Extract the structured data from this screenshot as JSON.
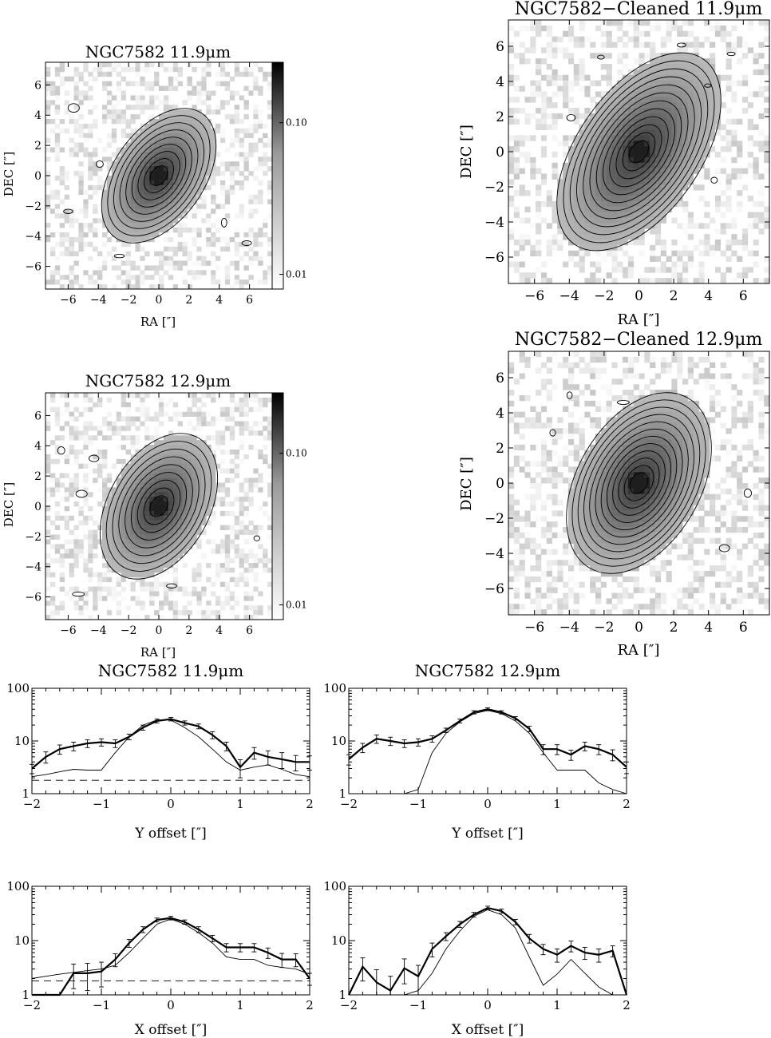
{
  "figure": {
    "images": [
      {
        "title": "NGC7582 11.9μm",
        "xlabel": "RA [″]",
        "ylabel": "DEC [″]",
        "ticks": [
          "−6",
          "−4",
          "−2",
          "0",
          "2",
          "4",
          "6"
        ],
        "range": [
          -7.5,
          7.5
        ],
        "colorbar": true,
        "colorbar_ticks": [
          "0.10",
          "0.01"
        ],
        "colorbar_values": [
          0.1,
          0.01
        ],
        "angle_deg": 35,
        "sigma": [
          1.35,
          2.3
        ],
        "contours": 9
      },
      {
        "title": "NGC7582−Cleaned 11.9μm",
        "xlabel": "RA [″]",
        "ylabel": "DEC [″]",
        "ticks": [
          "−6",
          "−4",
          "−2",
          "0",
          "2",
          "4",
          "6"
        ],
        "range": [
          -7.5,
          7.5
        ],
        "colorbar": false,
        "angle_deg": 35,
        "sigma": [
          1.6,
          3.0
        ],
        "contours": 12
      },
      {
        "title": "NGC7582 12.9μm",
        "xlabel": "RA [″]",
        "ylabel": "DEC [″]",
        "ticks": [
          "−6",
          "−4",
          "−2",
          "0",
          "2",
          "4",
          "6"
        ],
        "range": [
          -7.5,
          7.5
        ],
        "colorbar": true,
        "colorbar_ticks": [
          "0.10",
          "0.01"
        ],
        "colorbar_values": [
          0.1,
          0.01
        ],
        "angle_deg": 30,
        "sigma": [
          1.5,
          2.4
        ],
        "contours": 9
      },
      {
        "title": "NGC7582−Cleaned 12.9μm",
        "xlabel": "RA [″]",
        "ylabel": "DEC [″]",
        "ticks": [
          "−6",
          "−4",
          "−2",
          "0",
          "2",
          "4",
          "6"
        ],
        "range": [
          -7.5,
          7.5
        ],
        "colorbar": false,
        "angle_deg": 30,
        "sigma": [
          1.6,
          2.6
        ],
        "contours": 12
      }
    ]
  },
  "chart_data": [
    {
      "type": "line",
      "title": "NGC7582 11.9μm",
      "xlabel": "Y offset [″]",
      "ylabel": "",
      "xlim": [
        -2,
        2
      ],
      "ylim": [
        1,
        100
      ],
      "yscale": "log",
      "xticks": [
        "−2",
        "−1",
        "0",
        "1",
        "2"
      ],
      "yticks": [
        "1",
        "10",
        "100"
      ],
      "x": [
        -2.0,
        -1.8,
        -1.6,
        -1.4,
        -1.2,
        -1.0,
        -0.8,
        -0.6,
        -0.4,
        -0.2,
        0.0,
        0.2,
        0.4,
        0.6,
        0.8,
        1.0,
        1.2,
        1.4,
        1.6,
        1.8,
        2.0
      ],
      "series": [
        {
          "style": "thick",
          "y": [
            3.0,
            5.0,
            7.0,
            8.0,
            9.0,
            9.5,
            9.0,
            12,
            18,
            24,
            26,
            22,
            19,
            13,
            8,
            3.2,
            6,
            5,
            4.5,
            4,
            4
          ],
          "err": [
            0.6,
            1.2,
            1.4,
            1.5,
            1.5,
            1.5,
            1.5,
            1.5,
            2,
            2,
            2,
            2,
            2,
            2,
            1.5,
            1.2,
            1.5,
            1.5,
            1.5,
            1.3,
            1.2
          ]
        },
        {
          "style": "thin",
          "y": [
            2.1,
            2.3,
            2.6,
            2.9,
            2.8,
            2.8,
            6,
            12,
            20,
            25,
            25,
            18,
            12,
            7,
            4,
            2.8,
            3.2,
            3.5,
            2.9,
            2.3,
            2.1
          ]
        },
        {
          "style": "dashed",
          "y": [
            1.8,
            1.8,
            1.8,
            1.8,
            1.8,
            1.8,
            1.8,
            1.8,
            1.8,
            1.8,
            1.8,
            1.8,
            1.8,
            1.8,
            1.8,
            1.8,
            1.8,
            1.8,
            1.8,
            1.8,
            1.8
          ]
        }
      ]
    },
    {
      "type": "line",
      "title": "NGC7582 12.9μm",
      "xlabel": "Y offset [″]",
      "ylabel": "",
      "xlim": [
        -2,
        2
      ],
      "ylim": [
        1,
        100
      ],
      "yscale": "log",
      "xticks": [
        "−2",
        "−1",
        "0",
        "1",
        "2"
      ],
      "yticks": [
        "1",
        "10",
        "100"
      ],
      "x": [
        -2.0,
        -1.8,
        -1.6,
        -1.4,
        -1.2,
        -1.0,
        -0.8,
        -0.6,
        -0.4,
        -0.2,
        0.0,
        0.2,
        0.4,
        0.6,
        0.8,
        1.0,
        1.2,
        1.4,
        1.6,
        1.8,
        2.0
      ],
      "series": [
        {
          "style": "thick",
          "y": [
            4.5,
            7.5,
            11,
            10,
            9,
            9.5,
            11,
            16,
            24,
            35,
            40,
            35,
            27,
            17,
            7,
            7,
            5.5,
            8,
            7,
            5.5,
            3.2
          ],
          "err": [
            1,
            1.5,
            2,
            1.8,
            1.5,
            1.5,
            1.5,
            1.5,
            2,
            2.5,
            2.5,
            2.5,
            2,
            2,
            1.5,
            1.5,
            1.2,
            1.5,
            1.5,
            1.3,
            0.8
          ]
        },
        {
          "style": "thin",
          "y": [
            1.0,
            1.0,
            1.0,
            1.0,
            1.0,
            1.2,
            6,
            14,
            23,
            33,
            38,
            33,
            24,
            14,
            6,
            2.8,
            2.8,
            2.8,
            1.6,
            1.2,
            0.95
          ]
        }
      ]
    },
    {
      "type": "line",
      "title": "",
      "xlabel": "X offset [″]",
      "ylabel": "",
      "xlim": [
        -2,
        2
      ],
      "ylim": [
        1,
        100
      ],
      "yscale": "log",
      "xticks": [
        "−2",
        "−1",
        "0",
        "1",
        "2"
      ],
      "yticks": [
        "1",
        "10",
        "100"
      ],
      "x": [
        -2.0,
        -1.8,
        -1.6,
        -1.4,
        -1.2,
        -1.0,
        -0.8,
        -0.6,
        -0.4,
        -0.2,
        0.0,
        0.2,
        0.4,
        0.6,
        0.8,
        1.0,
        1.2,
        1.4,
        1.6,
        1.8,
        2.0
      ],
      "series": [
        {
          "style": "thick",
          "y": [
            0.9,
            0.9,
            0.9,
            2.5,
            2.5,
            2.7,
            4.5,
            9,
            16,
            24,
            26,
            22,
            16,
            11,
            7.5,
            7.5,
            7.5,
            6,
            4.5,
            4.5,
            2
          ],
          "err": [
            0,
            0,
            0,
            1.2,
            1.3,
            1.3,
            1.2,
            1.5,
            2,
            2,
            2,
            2,
            2,
            1.5,
            1.3,
            1.3,
            1.3,
            1.3,
            1.3,
            1.2,
            0.5
          ]
        },
        {
          "style": "thin",
          "y": [
            2.0,
            2.2,
            2.4,
            2.6,
            2.8,
            3.0,
            3.5,
            6,
            11,
            20,
            25,
            20,
            14,
            9,
            5,
            4.5,
            4.5,
            3.5,
            3.2,
            3.0,
            2.4
          ]
        },
        {
          "style": "dashed",
          "y": [
            1.8,
            1.8,
            1.8,
            1.8,
            1.8,
            1.8,
            1.8,
            1.8,
            1.8,
            1.8,
            1.8,
            1.8,
            1.8,
            1.8,
            1.8,
            1.8,
            1.8,
            1.8,
            1.8,
            1.8,
            1.8
          ]
        }
      ]
    },
    {
      "type": "line",
      "title": "",
      "xlabel": "X offset [″]",
      "ylabel": "",
      "xlim": [
        -2,
        2
      ],
      "ylim": [
        1,
        100
      ],
      "yscale": "log",
      "xticks": [
        "−2",
        "−1",
        "0",
        "1",
        "2"
      ],
      "yticks": [
        "1",
        "10",
        "100"
      ],
      "x": [
        -2.0,
        -1.8,
        -1.6,
        -1.4,
        -1.2,
        -1.0,
        -0.8,
        -0.6,
        -0.4,
        -0.2,
        0.0,
        0.2,
        0.4,
        0.6,
        0.8,
        1.0,
        1.2,
        1.4,
        1.6,
        1.8,
        2.0
      ],
      "series": [
        {
          "style": "thick",
          "y": [
            0.9,
            3.3,
            1.7,
            1.2,
            3.1,
            2.2,
            7,
            12,
            20,
            30,
            40,
            35,
            22,
            11,
            7,
            5.5,
            8,
            6,
            5.5,
            6.5,
            0.9
          ],
          "err": [
            0,
            1.5,
            1.2,
            1,
            1.5,
            1.3,
            2,
            2,
            2.5,
            3,
            3,
            3,
            2.5,
            2,
            1.5,
            1.5,
            1.8,
            1.5,
            1.5,
            1.5,
            0
          ]
        },
        {
          "style": "thin",
          "y": [
            0.9,
            0.9,
            0.9,
            0.9,
            0.9,
            1.2,
            2.5,
            7,
            15,
            28,
            37,
            30,
            17,
            5,
            1.5,
            2.4,
            4.5,
            2.5,
            1.4,
            0.9,
            0.9
          ]
        }
      ]
    }
  ]
}
